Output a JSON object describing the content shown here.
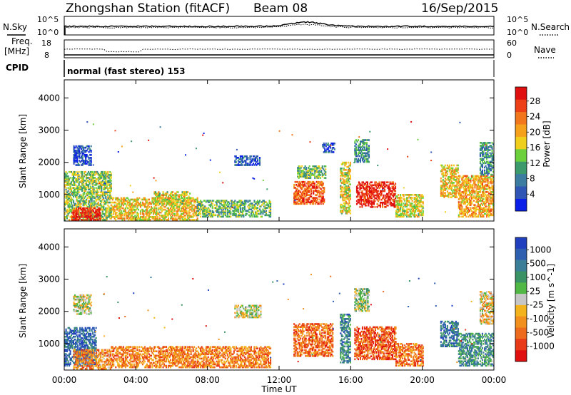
{
  "header": {
    "station": "Zhongshan Station (fitACF)",
    "beam": "Beam 08",
    "date": "16/Sep/2015"
  },
  "top_panel": {
    "left_label": "N.Sky",
    "right_label": "N.Search",
    "left_ticks": [
      "10^5",
      "10^0"
    ],
    "right_ticks": [
      "10^5",
      "10^0"
    ]
  },
  "freq_panel": {
    "left_label_1": "Freq.",
    "left_label_2": "[MHz]",
    "right_label": "Nave",
    "left_ticks": [
      "18",
      "8"
    ],
    "right_ticks": [
      "60",
      "0"
    ]
  },
  "cpid_panel": {
    "label": "CPID",
    "text": "normal (fast stereo) 153"
  },
  "x_axis": {
    "label": "Time UT",
    "ticks": [
      "00:00",
      "04:00",
      "08:00",
      "12:00",
      "16:00",
      "20:00",
      "00:00"
    ]
  },
  "chart_data": [
    {
      "type": "heatmap",
      "name": "power",
      "ylabel": "Slant Range [km]",
      "xlabel": "",
      "yticks": [
        "1000",
        "2000",
        "3000",
        "4000"
      ],
      "ylim": [
        180,
        4560
      ],
      "xlim_hours": [
        0,
        24
      ],
      "colorbar": {
        "label": "Power [dB]",
        "ticks": [
          "4",
          "8",
          "12",
          "16",
          "20",
          "24",
          "28"
        ],
        "range": [
          0,
          32
        ],
        "colors": [
          "#0a1fe8",
          "#2f56b5",
          "#3b7ca0",
          "#3d9a6c",
          "#6ccf3c",
          "#f0cf1c",
          "#f5a11c",
          "#f2771c",
          "#ee4018",
          "#e01010"
        ]
      },
      "echo_regions": [
        {
          "t0": 0.0,
          "t1": 2.6,
          "r0": 200,
          "r1": 1700,
          "level": 0.45
        },
        {
          "t0": 0.4,
          "t1": 2.0,
          "r0": 200,
          "r1": 600,
          "level": 0.9
        },
        {
          "t0": 0.5,
          "t1": 1.5,
          "r0": 1900,
          "r1": 2500,
          "level": 0.15
        },
        {
          "t0": 2.6,
          "t1": 7.4,
          "r0": 200,
          "r1": 900,
          "level": 0.6
        },
        {
          "t0": 5.0,
          "t1": 7.0,
          "r0": 700,
          "r1": 1100,
          "level": 0.55
        },
        {
          "t0": 7.4,
          "t1": 11.5,
          "r0": 300,
          "r1": 800,
          "level": 0.4
        },
        {
          "t0": 9.5,
          "t1": 10.9,
          "r0": 1900,
          "r1": 2200,
          "level": 0.15
        },
        {
          "t0": 12.8,
          "t1": 14.5,
          "r0": 700,
          "r1": 1400,
          "level": 0.8
        },
        {
          "t0": 13.0,
          "t1": 14.6,
          "r0": 1500,
          "r1": 1900,
          "level": 0.4
        },
        {
          "t0": 14.4,
          "t1": 15.1,
          "r0": 2300,
          "r1": 2600,
          "level": 0.15
        },
        {
          "t0": 15.4,
          "t1": 16.0,
          "r0": 400,
          "r1": 2000,
          "level": 0.55
        },
        {
          "t0": 16.2,
          "t1": 17.0,
          "r0": 2000,
          "r1": 2700,
          "level": 0.3
        },
        {
          "t0": 16.3,
          "t1": 18.5,
          "r0": 600,
          "r1": 1400,
          "level": 0.92
        },
        {
          "t0": 18.5,
          "t1": 20.0,
          "r0": 300,
          "r1": 1000,
          "level": 0.55
        },
        {
          "t0": 21.0,
          "t1": 22.0,
          "r0": 900,
          "r1": 1900,
          "level": 0.6
        },
        {
          "t0": 22.0,
          "t1": 24.0,
          "r0": 300,
          "r1": 1600,
          "level": 0.65
        },
        {
          "t0": 23.2,
          "t1": 24.0,
          "r0": 1600,
          "r1": 2600,
          "level": 0.3
        }
      ]
    },
    {
      "type": "heatmap",
      "name": "velocity",
      "ylabel": "Slant Range [km]",
      "xlabel": "Time UT",
      "yticks": [
        "1000",
        "2000",
        "3000",
        "4000"
      ],
      "ylim": [
        180,
        4560
      ],
      "xlim_hours": [
        0,
        24
      ],
      "colorbar": {
        "label": "Velocity [m s^-1]",
        "ticks": [
          "1000",
          "500",
          "100",
          "25",
          "-25",
          "-100",
          "-500",
          "-1000"
        ],
        "range": [
          -1250,
          1250
        ],
        "colors": [
          "#1f3fbf",
          "#2f5faf",
          "#3a7e98",
          "#3b9265",
          "#52b845",
          "#c6c6c6",
          "#f3b31c",
          "#f1901c",
          "#ee6a1c",
          "#e83a18",
          "#e01010"
        ]
      },
      "echo_regions": [
        {
          "t0": 0.0,
          "t1": 1.8,
          "r0": 300,
          "r1": 1500,
          "level": 0.15
        },
        {
          "t0": 0.5,
          "t1": 2.6,
          "r0": 200,
          "r1": 800,
          "level": 0.7
        },
        {
          "t0": 0.5,
          "t1": 1.5,
          "r0": 1900,
          "r1": 2500,
          "level": 0.5
        },
        {
          "t0": 2.6,
          "t1": 11.5,
          "r0": 250,
          "r1": 900,
          "level": 0.72
        },
        {
          "t0": 9.5,
          "t1": 11.0,
          "r0": 1800,
          "r1": 2200,
          "level": 0.5
        },
        {
          "t0": 12.8,
          "t1": 15.0,
          "r0": 600,
          "r1": 1600,
          "level": 0.78
        },
        {
          "t0": 15.4,
          "t1": 16.0,
          "r0": 400,
          "r1": 1900,
          "level": 0.25
        },
        {
          "t0": 16.2,
          "t1": 18.5,
          "r0": 500,
          "r1": 1500,
          "level": 0.82
        },
        {
          "t0": 16.2,
          "t1": 17.0,
          "r0": 2000,
          "r1": 2700,
          "level": 0.45
        },
        {
          "t0": 18.5,
          "t1": 20.0,
          "r0": 300,
          "r1": 1000,
          "level": 0.75
        },
        {
          "t0": 21.0,
          "t1": 22.0,
          "r0": 900,
          "r1": 1700,
          "level": 0.2
        },
        {
          "t0": 22.0,
          "t1": 24.0,
          "r0": 300,
          "r1": 1300,
          "level": 0.3
        },
        {
          "t0": 23.2,
          "t1": 24.0,
          "r0": 1600,
          "r1": 2600,
          "level": 0.6
        }
      ]
    }
  ]
}
